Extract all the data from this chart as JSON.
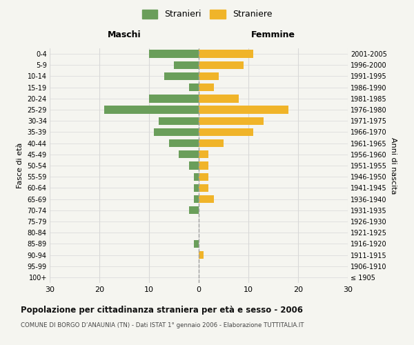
{
  "age_groups": [
    "100+",
    "95-99",
    "90-94",
    "85-89",
    "80-84",
    "75-79",
    "70-74",
    "65-69",
    "60-64",
    "55-59",
    "50-54",
    "45-49",
    "40-44",
    "35-39",
    "30-34",
    "25-29",
    "20-24",
    "15-19",
    "10-14",
    "5-9",
    "0-4"
  ],
  "birth_years": [
    "≤ 1905",
    "1906-1910",
    "1911-1915",
    "1916-1920",
    "1921-1925",
    "1926-1930",
    "1931-1935",
    "1936-1940",
    "1941-1945",
    "1946-1950",
    "1951-1955",
    "1956-1960",
    "1961-1965",
    "1966-1970",
    "1971-1975",
    "1976-1980",
    "1981-1985",
    "1986-1990",
    "1991-1995",
    "1996-2000",
    "2001-2005"
  ],
  "males": [
    0,
    0,
    0,
    1,
    0,
    0,
    2,
    1,
    1,
    1,
    2,
    4,
    6,
    9,
    8,
    19,
    10,
    2,
    7,
    5,
    10
  ],
  "females": [
    0,
    0,
    1,
    0,
    0,
    0,
    0,
    3,
    2,
    2,
    2,
    2,
    5,
    11,
    13,
    18,
    8,
    3,
    4,
    9,
    11
  ],
  "male_color": "#6a9e5a",
  "female_color": "#f0b429",
  "center_line_color": "#a0a0a0",
  "grid_color": "#d8d8d8",
  "bg_color": "#f5f5f0",
  "title": "Popolazione per cittadinanza straniera per età e sesso - 2006",
  "subtitle": "COMUNE DI BORGO D’ANAUNIA (TN) - Dati ISTAT 1° gennaio 2006 - Elaborazione TUTTITALIA.IT",
  "xlabel_left": "Maschi",
  "xlabel_right": "Femmine",
  "ylabel_left": "Fasce di età",
  "ylabel_right": "Anni di nascita",
  "legend_male": "Stranieri",
  "legend_female": "Straniere",
  "xlim": 30
}
